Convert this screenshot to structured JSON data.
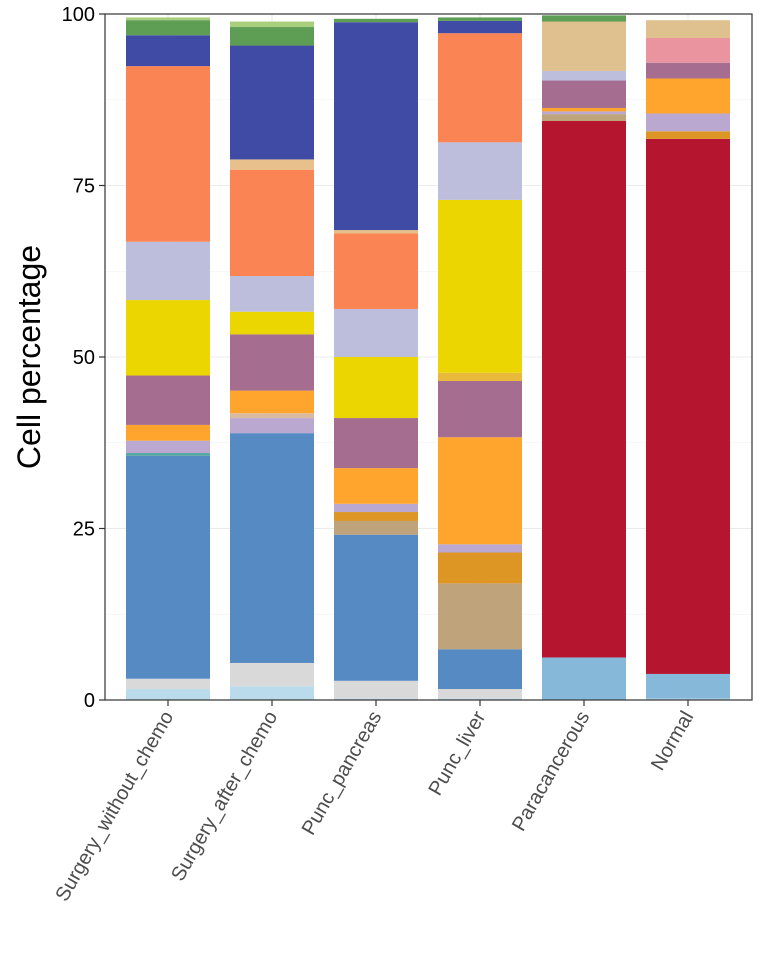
{
  "chart_data": {
    "type": "bar",
    "stacked": true,
    "ylabel": "Cell percentage",
    "xlabel": "",
    "ylim": [
      0,
      100
    ],
    "yticks": [
      0,
      25,
      50,
      75,
      100
    ],
    "grid": true,
    "legend": "none",
    "categories": [
      "Surgery_without_chemo",
      "Surgery_after_chemo",
      "Punc_pancreas",
      "Punc_liver",
      "Paracancerous",
      "Normal"
    ],
    "series": [
      {
        "color": "#b9dbeb",
        "values": [
          1.6,
          2.0,
          0.2,
          0.2,
          0.0,
          0.2
        ]
      },
      {
        "color": "#86b9d9",
        "values": [
          0.0,
          0.0,
          0.0,
          0.0,
          6.2,
          3.6
        ]
      },
      {
        "color": "#d9d9d9",
        "values": [
          1.5,
          3.4,
          2.6,
          1.4,
          0.0,
          0.0
        ]
      },
      {
        "color": "#b5152f",
        "values": [
          0.0,
          0.0,
          0.0,
          0.0,
          78.2,
          78.0
        ]
      },
      {
        "color": "#568ac3",
        "values": [
          32.5,
          33.5,
          21.3,
          5.8,
          0.0,
          0.0
        ]
      },
      {
        "color": "#bfa37b",
        "values": [
          0.0,
          0.0,
          2.0,
          9.6,
          1.0,
          0.0
        ]
      },
      {
        "color": "#dd9624",
        "values": [
          0.0,
          0.0,
          1.3,
          4.5,
          0.0,
          1.1
        ]
      },
      {
        "color": "#56a6a0",
        "values": [
          0.4,
          0.0,
          0.0,
          0.0,
          0.0,
          0.0
        ]
      },
      {
        "color": "#bba8d1",
        "values": [
          1.8,
          2.2,
          1.2,
          1.2,
          0.4,
          2.6
        ]
      },
      {
        "color": "#d8baa0",
        "values": [
          0.0,
          0.7,
          0.0,
          0.0,
          0.0,
          0.0
        ]
      },
      {
        "color": "#ffa42c",
        "values": [
          2.3,
          3.3,
          5.2,
          15.6,
          0.5,
          5.1
        ]
      },
      {
        "color": "#a56e91",
        "values": [
          7.2,
          8.2,
          7.3,
          8.2,
          4.0,
          2.3
        ]
      },
      {
        "color": "#e8b93a",
        "values": [
          0.0,
          0.0,
          0.0,
          1.2,
          0.0,
          0.0
        ]
      },
      {
        "color": "#ebd602",
        "values": [
          11.0,
          3.3,
          8.9,
          25.2,
          0.0,
          0.0
        ]
      },
      {
        "color": "#bcbedc",
        "values": [
          8.5,
          5.2,
          7.0,
          8.4,
          1.4,
          0.0
        ]
      },
      {
        "color": "#fb8454",
        "values": [
          25.6,
          15.5,
          11.0,
          15.9,
          0.0,
          0.0
        ]
      },
      {
        "color": "#e7c08b",
        "values": [
          0.0,
          1.5,
          0.5,
          0.0,
          0.0,
          0.0
        ]
      },
      {
        "color": "#3f4ba4",
        "values": [
          4.5,
          16.6,
          30.3,
          1.8,
          0.0,
          0.0
        ]
      },
      {
        "color": "#ea949f",
        "values": [
          0.0,
          0.0,
          0.0,
          0.0,
          0.0,
          3.6
        ]
      },
      {
        "color": "#dfc08f",
        "values": [
          0.0,
          0.0,
          0.0,
          0.0,
          7.2,
          2.6
        ]
      },
      {
        "color": "#5d9d54",
        "values": [
          2.2,
          2.7,
          0.5,
          0.5,
          0.9,
          0.0
        ]
      },
      {
        "color": "#a9cf7d",
        "values": [
          0.4,
          0.8,
          0.0,
          0.0,
          0.0,
          0.0
        ]
      }
    ]
  }
}
